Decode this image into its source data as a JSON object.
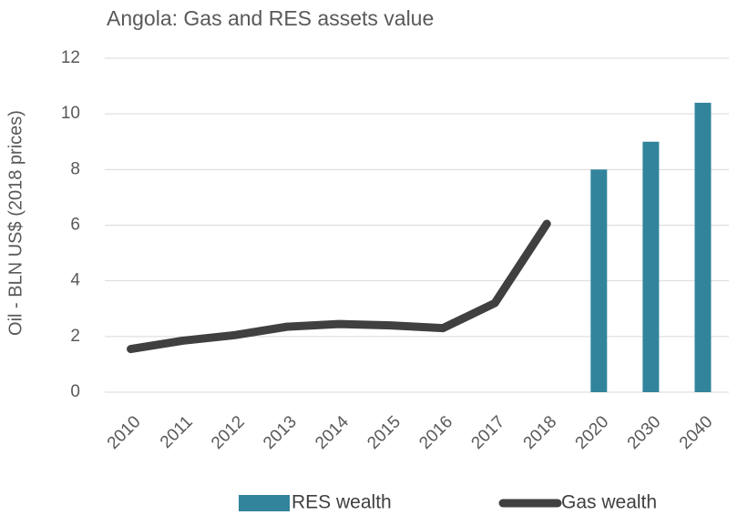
{
  "chart_data": {
    "type": "combo",
    "title": "Angola: Gas and RES assets value",
    "y_label": "Oil - BLN US$ (2018 prices)",
    "categories": [
      "2010",
      "2011",
      "2012",
      "2013",
      "2014",
      "2015",
      "2016",
      "2017",
      "2018",
      "2020",
      "2030",
      "2040"
    ],
    "series": [
      {
        "name": "RES wealth",
        "type": "bar",
        "color": "#31849b",
        "values": [
          null,
          null,
          null,
          null,
          null,
          null,
          null,
          null,
          null,
          8,
          9,
          10.4
        ]
      },
      {
        "name": "Gas wealth",
        "type": "line",
        "color": "#404040",
        "values": [
          1.55,
          1.85,
          2.05,
          2.35,
          2.45,
          2.4,
          2.3,
          3.2,
          6.05,
          null,
          null,
          null
        ]
      }
    ],
    "ylim": [
      0,
      12
    ],
    "yticks": [
      0,
      2,
      4,
      6,
      8,
      10,
      12
    ],
    "grid": true,
    "legend": "bottom"
  }
}
